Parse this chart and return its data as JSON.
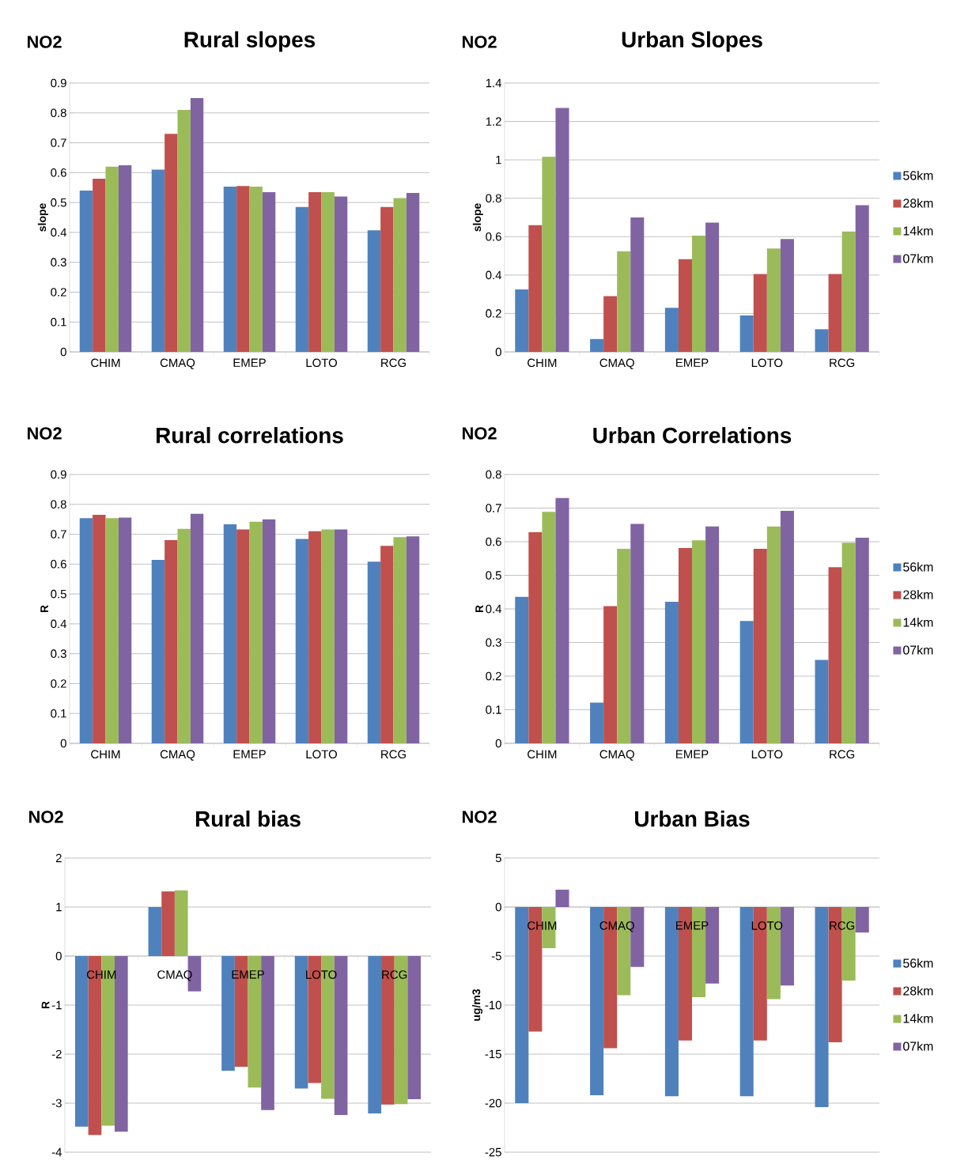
{
  "chart_data": [
    {
      "type": "bar",
      "title": "Rural slopes",
      "ylabel": "slope",
      "annotations": [
        "NO2"
      ],
      "categories": [
        "CHIM",
        "CMAQ",
        "EMEP",
        "LOTO",
        "RCG"
      ],
      "ylim": [
        0,
        0.9
      ],
      "yticks": [
        0,
        0.1,
        0.2,
        0.3,
        0.4,
        0.5,
        0.6,
        0.7,
        0.8,
        0.9
      ],
      "grid": "y",
      "series": [
        {
          "color": "#4f81bd",
          "values": [
            0.54,
            0.61,
            0.553,
            0.485,
            0.407
          ]
        },
        {
          "color": "#c0504d",
          "values": [
            0.58,
            0.73,
            0.555,
            0.535,
            0.485
          ]
        },
        {
          "color": "#9bbb59",
          "values": [
            0.62,
            0.81,
            0.553,
            0.535,
            0.515
          ]
        },
        {
          "color": "#8064a2",
          "values": [
            0.625,
            0.85,
            0.535,
            0.52,
            0.532
          ]
        }
      ]
    },
    {
      "type": "bar",
      "title": "Urban Slopes",
      "ylabel": "slope",
      "annotations": [
        "NO2"
      ],
      "categories": [
        "CHIM",
        "CMAQ",
        "EMEP",
        "LOTO",
        "RCG"
      ],
      "ylim": [
        0,
        1.4
      ],
      "yticks": [
        0,
        0.2,
        0.4,
        0.6,
        0.8,
        1,
        1.2,
        1.4
      ],
      "grid": "y",
      "legend": "right",
      "series": [
        {
          "name": "56km",
          "color": "#4f81bd",
          "values": [
            0.325,
            0.067,
            0.23,
            0.19,
            0.118
          ]
        },
        {
          "name": "28km",
          "color": "#c0504d",
          "values": [
            0.66,
            0.29,
            0.483,
            0.406,
            0.406
          ]
        },
        {
          "name": "14km",
          "color": "#9bbb59",
          "values": [
            1.016,
            0.524,
            0.605,
            0.538,
            0.627
          ]
        },
        {
          "name": "07km",
          "color": "#8064a2",
          "values": [
            1.27,
            0.7,
            0.673,
            0.588,
            0.764
          ]
        }
      ]
    },
    {
      "type": "bar",
      "title": "Rural correlations",
      "ylabel": "R",
      "annotations": [
        "NO2"
      ],
      "categories": [
        "CHIM",
        "CMAQ",
        "EMEP",
        "LOTO",
        "RCG"
      ],
      "ylim": [
        0,
        0.9
      ],
      "yticks": [
        0,
        0.1,
        0.2,
        0.3,
        0.4,
        0.5,
        0.6,
        0.7,
        0.8,
        0.9
      ],
      "grid": "y",
      "series": [
        {
          "color": "#4f81bd",
          "values": [
            0.754,
            0.614,
            0.733,
            0.684,
            0.608
          ]
        },
        {
          "color": "#c0504d",
          "values": [
            0.765,
            0.68,
            0.716,
            0.71,
            0.661
          ]
        },
        {
          "color": "#9bbb59",
          "values": [
            0.754,
            0.718,
            0.742,
            0.716,
            0.69
          ]
        },
        {
          "color": "#8064a2",
          "values": [
            0.756,
            0.768,
            0.75,
            0.716,
            0.693
          ]
        }
      ]
    },
    {
      "type": "bar",
      "title": "Urban Correlations",
      "ylabel": "R",
      "annotations": [
        "NO2"
      ],
      "categories": [
        "CHIM",
        "CMAQ",
        "EMEP",
        "LOTO",
        "RCG"
      ],
      "ylim": [
        0,
        0.8
      ],
      "yticks": [
        0,
        0.1,
        0.2,
        0.3,
        0.4,
        0.5,
        0.6,
        0.7,
        0.8
      ],
      "grid": "y",
      "legend": "right",
      "series": [
        {
          "name": "56km",
          "color": "#4f81bd",
          "values": [
            0.436,
            0.121,
            0.421,
            0.364,
            0.248
          ]
        },
        {
          "name": "28km",
          "color": "#c0504d",
          "values": [
            0.628,
            0.408,
            0.581,
            0.579,
            0.524
          ]
        },
        {
          "name": "14km",
          "color": "#9bbb59",
          "values": [
            0.689,
            0.579,
            0.604,
            0.645,
            0.597
          ]
        },
        {
          "name": "07km",
          "color": "#8064a2",
          "values": [
            0.73,
            0.653,
            0.645,
            0.692,
            0.612
          ]
        }
      ]
    },
    {
      "type": "bar",
      "title": "Rural bias",
      "ylabel": "R",
      "annotations": [
        "NO2"
      ],
      "categories": [
        "CHIM",
        "CMAQ",
        "EMEP",
        "LOTO",
        "RCG"
      ],
      "ylim": [
        -4,
        2
      ],
      "yticks": [
        -4,
        -3,
        -2,
        -1,
        0,
        1,
        2
      ],
      "grid": "y",
      "series": [
        {
          "color": "#4f81bd",
          "values": [
            -3.48,
            1.0,
            -2.34,
            -2.7,
            -3.21
          ]
        },
        {
          "color": "#c0504d",
          "values": [
            -3.65,
            1.32,
            -2.26,
            -2.59,
            -3.03
          ]
        },
        {
          "color": "#9bbb59",
          "values": [
            -3.46,
            1.34,
            -2.68,
            -2.91,
            -3.02
          ]
        },
        {
          "color": "#8064a2",
          "values": [
            -3.58,
            -0.72,
            -3.14,
            -3.24,
            -2.92
          ]
        }
      ]
    },
    {
      "type": "bar",
      "title": "Urban Bias",
      "ylabel": "ug/m3",
      "annotations": [
        "NO2"
      ],
      "categories": [
        "CHIM",
        "CMAQ",
        "EMEP",
        "LOTO",
        "RCG"
      ],
      "ylim": [
        -25,
        5
      ],
      "yticks": [
        -25,
        -20,
        -15,
        -10,
        -5,
        0,
        5
      ],
      "grid": "y",
      "legend": "right",
      "series": [
        {
          "name": "56km",
          "color": "#4f81bd",
          "values": [
            -20,
            -19.2,
            -19.3,
            -19.3,
            -20.4
          ]
        },
        {
          "name": "28km",
          "color": "#c0504d",
          "values": [
            -12.7,
            -14.4,
            -13.6,
            -13.6,
            -13.8
          ]
        },
        {
          "name": "14km",
          "color": "#9bbb59",
          "values": [
            -4.2,
            -9.0,
            -9.2,
            -9.4,
            -7.5
          ]
        },
        {
          "name": "07km",
          "color": "#8064a2",
          "values": [
            1.77,
            -6.1,
            -7.8,
            -8.0,
            -2.6
          ]
        }
      ]
    }
  ]
}
